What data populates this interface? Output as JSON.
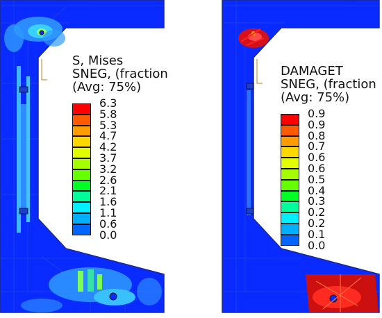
{
  "panels": [
    {
      "legend": {
        "title_lines": [
          "S, Mises",
          "SNEG, (fraction",
          "(Avg: 75%)"
        ],
        "colors": [
          "#ff0000",
          "#ff5a00",
          "#ff9c00",
          "#ffd800",
          "#e2ff00",
          "#a6ff00",
          "#66ff00",
          "#00ff24",
          "#00ff9a",
          "#00f0ff",
          "#00b0ff",
          "#0066ff",
          "#0010ff"
        ],
        "ticks": [
          "6.3",
          "5.8",
          "5.3",
          "4.7",
          "4.2",
          "3.7",
          "3.2",
          "2.6",
          "2.1",
          "1.6",
          "1.1",
          "0.6",
          "0.0"
        ]
      }
    },
    {
      "legend": {
        "title_lines": [
          "DAMAGET",
          "SNEG, (fraction",
          "(Avg: 75%)"
        ],
        "colors": [
          "#ff0000",
          "#ff5a00",
          "#ff9c00",
          "#ffd800",
          "#e2ff00",
          "#a6ff00",
          "#66ff00",
          "#00ff24",
          "#00ff9a",
          "#00f0ff",
          "#00b0ff",
          "#0066ff",
          "#0010ff"
        ],
        "ticks": [
          "0.9",
          "0.9",
          "0.8",
          "0.7",
          "0.6",
          "0.6",
          "0.5",
          "0.4",
          "0.3",
          "0.2",
          "0.2",
          "0.1",
          "0.0"
        ]
      }
    }
  ]
}
